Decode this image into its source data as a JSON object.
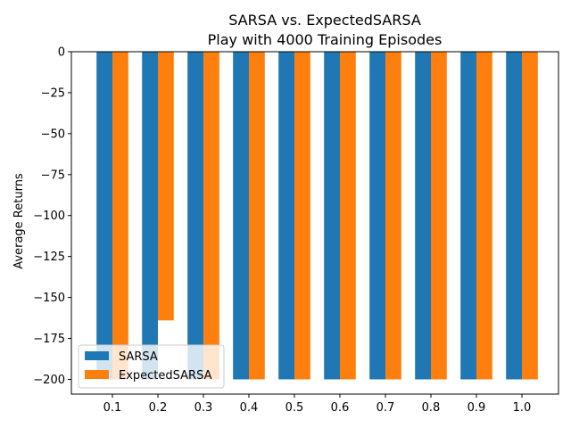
{
  "chart_data": {
    "type": "bar",
    "title": "SARSA vs. ExpectedSARSA",
    "subtitle": "Play with 4000 Training Episodes",
    "xlabel": "",
    "ylabel": "Average Returns",
    "categories": [
      "0.1",
      "0.2",
      "0.3",
      "0.4",
      "0.5",
      "0.6",
      "0.7",
      "0.8",
      "0.9",
      "1.0"
    ],
    "series": [
      {
        "name": "SARSA",
        "color": "#1f77b4",
        "values": [
          -200,
          -200,
          -200,
          -200,
          -200,
          -200,
          -200,
          -200,
          -200,
          -200
        ]
      },
      {
        "name": "ExpectedSARSA",
        "color": "#ff7f0e",
        "values": [
          -200,
          -164,
          -200,
          -200,
          -200,
          -200,
          -200,
          -200,
          -200,
          -200
        ]
      }
    ],
    "ylim": [
      -209,
      0
    ],
    "yticks": [
      0,
      -25,
      -50,
      -75,
      -100,
      -125,
      -150,
      -175,
      -200
    ],
    "legend_position": "bottom-left",
    "grid": false
  }
}
